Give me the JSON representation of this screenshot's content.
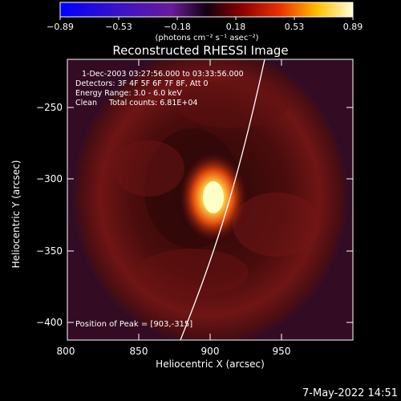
{
  "colorbar": {
    "tick_labels": [
      "−0.89",
      "−0.53",
      "−0.18",
      "0.18",
      "0.53",
      "0.89"
    ],
    "unit_label": "(photons cm⁻² s⁻¹ asec⁻²)"
  },
  "plot": {
    "title": "Reconstructed RHESSI Image",
    "info": [
      "1-Dec-2003 03:27:56.000 to 03:33:56.000",
      "Detectors: 3F 4F 5F 6F 7F 8F, Att 0",
      "Energy Range: 3.0 - 6.0 keV",
      "Clean     Total counts: 6.81E+04"
    ],
    "peak_text": "Position of Peak = [903,-315]",
    "xlabel": "Heliocentric X (arcsec)",
    "ylabel": "Heliocentric Y (arcsec)",
    "x_ticks": [
      "800",
      "850",
      "900",
      "950"
    ],
    "y_ticks": [
      "−250",
      "−300",
      "−350",
      "−400"
    ]
  },
  "footer": {
    "timestamp": "7-May-2022 14:51"
  },
  "colors": {
    "background": "#000000",
    "foreground": "#ffffff",
    "image_base": "#4a0c0c",
    "peak_core": "#ffffc8"
  }
}
